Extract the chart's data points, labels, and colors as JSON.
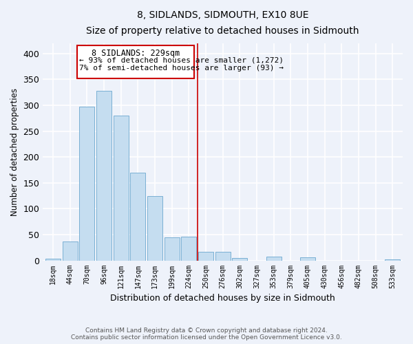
{
  "title": "8, SIDLANDS, SIDMOUTH, EX10 8UE",
  "subtitle": "Size of property relative to detached houses in Sidmouth",
  "xlabel": "Distribution of detached houses by size in Sidmouth",
  "ylabel": "Number of detached properties",
  "bar_labels": [
    "18sqm",
    "44sqm",
    "70sqm",
    "96sqm",
    "121sqm",
    "147sqm",
    "173sqm",
    "199sqm",
    "224sqm",
    "250sqm",
    "276sqm",
    "302sqm",
    "327sqm",
    "353sqm",
    "379sqm",
    "405sqm",
    "430sqm",
    "456sqm",
    "482sqm",
    "508sqm",
    "533sqm"
  ],
  "bar_values": [
    4,
    37,
    297,
    328,
    280,
    170,
    124,
    44,
    46,
    17,
    17,
    5,
    0,
    7,
    0,
    6,
    0,
    0,
    0,
    0,
    2
  ],
  "bar_color": "#c5ddf0",
  "bar_edge_color": "#7ab0d4",
  "highlight_label": "8 SIDLANDS: 229sqm",
  "annotation_line1": "← 93% of detached houses are smaller (1,272)",
  "annotation_line2": "7% of semi-detached houses are larger (93) →",
  "annotation_box_edge": "#cc0000",
  "ylim": [
    0,
    420
  ],
  "yticks": [
    0,
    50,
    100,
    150,
    200,
    250,
    300,
    350,
    400
  ],
  "footer_line1": "Contains HM Land Registry data © Crown copyright and database right 2024.",
  "footer_line2": "Contains public sector information licensed under the Open Government Licence v3.0.",
  "bg_color": "#eef2fa",
  "grid_color": "#ffffff"
}
